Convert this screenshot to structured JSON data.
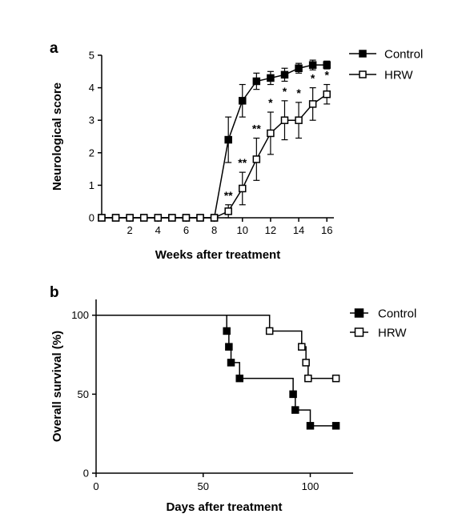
{
  "chart_data": [
    {
      "panel": "a",
      "type": "line",
      "title": "",
      "xlabel": "Weeks after treatment",
      "ylabel": "Neurological score",
      "xlim": [
        0,
        16.5
      ],
      "ylim": [
        0,
        5
      ],
      "x_ticks": [
        2,
        4,
        6,
        8,
        10,
        12,
        14,
        16
      ],
      "y_ticks": [
        0,
        1,
        2,
        3,
        4,
        5
      ],
      "grid": false,
      "legend_position": "top-right",
      "x": [
        0,
        1,
        2,
        3,
        4,
        5,
        6,
        7,
        8,
        9,
        10,
        11,
        12,
        13,
        14,
        15,
        16
      ],
      "series": [
        {
          "name": "Control",
          "marker": "filled-square",
          "color": "#000000",
          "values": [
            0,
            0,
            0,
            0,
            0,
            0,
            0,
            0,
            0,
            2.4,
            3.6,
            4.2,
            4.3,
            4.4,
            4.6,
            4.7,
            4.7
          ],
          "error": [
            0,
            0,
            0,
            0,
            0,
            0,
            0,
            0,
            0,
            0.7,
            0.5,
            0.25,
            0.2,
            0.2,
            0.15,
            0.15,
            0.12
          ]
        },
        {
          "name": "HRW",
          "marker": "open-square",
          "color": "#000000",
          "values": [
            0,
            0,
            0,
            0,
            0,
            0,
            0,
            0,
            0,
            0.2,
            0.9,
            1.8,
            2.6,
            3.0,
            3.0,
            3.5,
            3.8
          ],
          "error": [
            0,
            0,
            0,
            0,
            0,
            0,
            0,
            0,
            0,
            0.2,
            0.5,
            0.65,
            0.65,
            0.6,
            0.55,
            0.5,
            0.3
          ]
        }
      ],
      "annotations": [
        {
          "x": 9,
          "text": "**"
        },
        {
          "x": 10,
          "text": "**"
        },
        {
          "x": 11,
          "text": "**"
        },
        {
          "x": 12,
          "text": "*"
        },
        {
          "x": 13,
          "text": "*"
        },
        {
          "x": 14,
          "text": "*"
        },
        {
          "x": 15,
          "text": "*"
        },
        {
          "x": 16,
          "text": "*"
        }
      ]
    },
    {
      "panel": "b",
      "type": "line",
      "subtype": "step",
      "title": "",
      "xlabel": "Days after treatment",
      "ylabel": "Overall survival (%)",
      "xlim": [
        0,
        120
      ],
      "ylim": [
        0,
        110
      ],
      "x_ticks": [
        0,
        50,
        100
      ],
      "y_ticks": [
        0,
        50,
        100
      ],
      "grid": false,
      "legend_position": "top-right",
      "series": [
        {
          "name": "Control",
          "marker": "filled-square",
          "color": "#000000",
          "steps": [
            [
              0,
              100
            ],
            [
              61,
              90
            ],
            [
              62,
              80
            ],
            [
              63,
              70
            ],
            [
              67,
              60
            ],
            [
              92,
              50
            ],
            [
              93,
              40
            ],
            [
              100,
              30
            ],
            [
              112,
              30
            ]
          ],
          "markers": [
            [
              61,
              90
            ],
            [
              62,
              80
            ],
            [
              63,
              70
            ],
            [
              67,
              60
            ],
            [
              92,
              50
            ],
            [
              93,
              40
            ],
            [
              100,
              30
            ],
            [
              112,
              30
            ]
          ]
        },
        {
          "name": "HRW",
          "marker": "open-square",
          "color": "#000000",
          "steps": [
            [
              0,
              100
            ],
            [
              81,
              90
            ],
            [
              96,
              80
            ],
            [
              98,
              70
            ],
            [
              99,
              60
            ],
            [
              112,
              60
            ]
          ],
          "markers": [
            [
              81,
              90
            ],
            [
              96,
              80
            ],
            [
              98,
              70
            ],
            [
              99,
              60
            ],
            [
              112,
              60
            ]
          ]
        }
      ]
    }
  ]
}
